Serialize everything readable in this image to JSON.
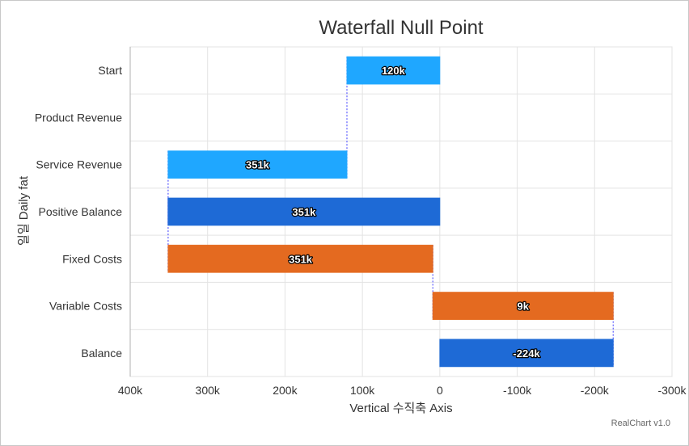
{
  "chart_data": {
    "type": "bar",
    "subtype": "waterfall-horizontal",
    "title": "Waterfall Null Point",
    "xlabel": "Vertical 수직축 Axis",
    "ylabel": "일일 Daily fat",
    "x_axis_reversed": true,
    "xlim": [
      -300000,
      400000
    ],
    "x_ticks": [
      {
        "value": 400000,
        "label": "400k"
      },
      {
        "value": 300000,
        "label": "300k"
      },
      {
        "value": 200000,
        "label": "200k"
      },
      {
        "value": 100000,
        "label": "100k"
      },
      {
        "value": 0,
        "label": "0"
      },
      {
        "value": -100000,
        "label": "-100k"
      },
      {
        "value": -200000,
        "label": "-200k"
      },
      {
        "value": -300000,
        "label": "-300k"
      }
    ],
    "grid": true,
    "bars": [
      {
        "category": "Start",
        "from": 0,
        "to": 120000,
        "label": "120k",
        "color": "#1fa7ff"
      },
      {
        "category": "Product Revenue",
        "from": null,
        "to": null,
        "label": "",
        "color": "#1fa7ff"
      },
      {
        "category": "Service Revenue",
        "from": 120000,
        "to": 351000,
        "label": "351k",
        "color": "#1fa7ff"
      },
      {
        "category": "Positive Balance",
        "from": 0,
        "to": 351000,
        "label": "351k",
        "color": "#1e6ad6"
      },
      {
        "category": "Fixed Costs",
        "from": 351000,
        "to": 9000,
        "label": "351k",
        "color": "#e46a20"
      },
      {
        "category": "Variable Costs",
        "from": 9000,
        "to": -224000,
        "label": "9k",
        "color": "#e46a20"
      },
      {
        "category": "Balance",
        "from": 0,
        "to": -224000,
        "label": "-224k",
        "color": "#1e6ad6"
      }
    ],
    "connector_color": "#5a5aff"
  },
  "credit": "RealChart v1.0"
}
